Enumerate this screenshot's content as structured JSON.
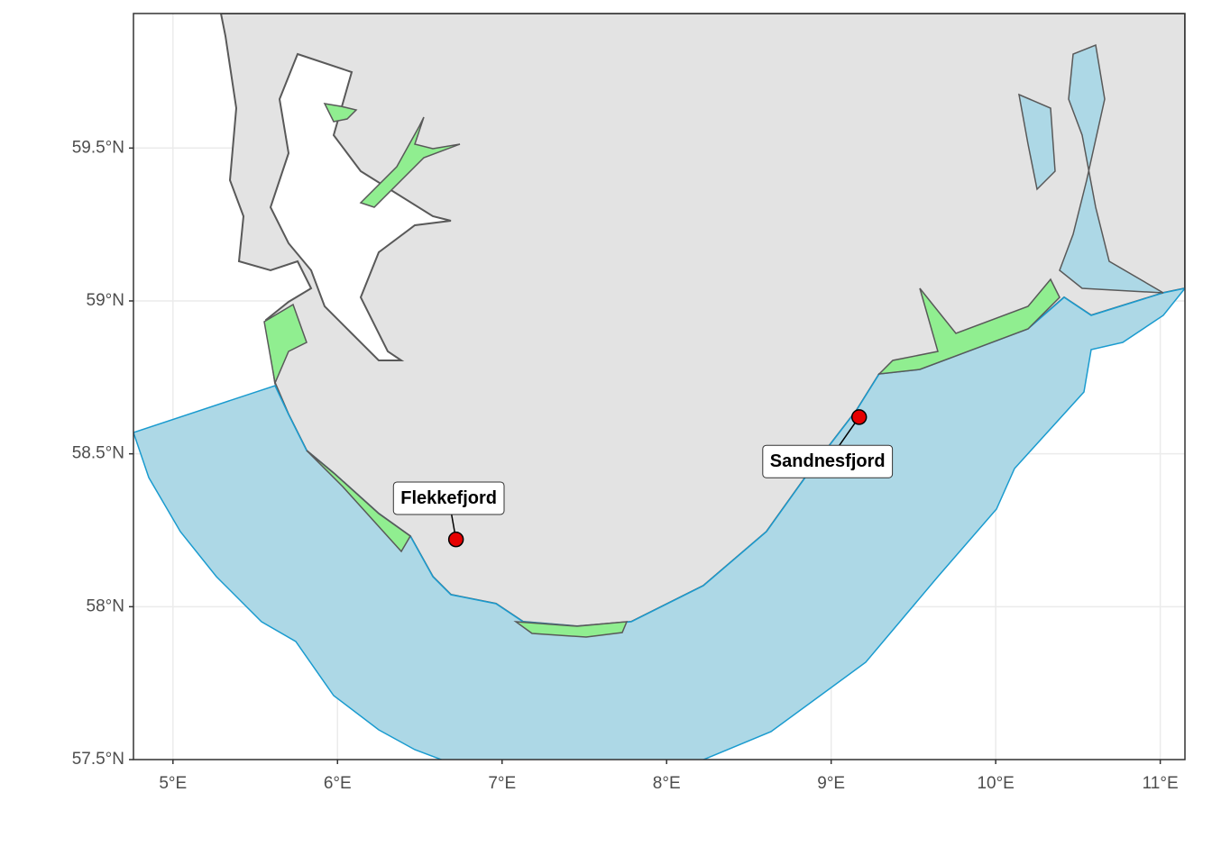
{
  "map": {
    "xlim": [
      4.76,
      11.15
    ],
    "ylim": [
      57.5,
      59.94
    ],
    "xticks": [
      {
        "value": 5,
        "label": "5°E"
      },
      {
        "value": 6,
        "label": "6°E"
      },
      {
        "value": 7,
        "label": "7°E"
      },
      {
        "value": 8,
        "label": "8°E"
      },
      {
        "value": 9,
        "label": "9°E"
      },
      {
        "value": 10,
        "label": "10°E"
      },
      {
        "value": 11,
        "label": "11°E"
      }
    ],
    "yticks": [
      {
        "value": 57.5,
        "label": "57.5°N"
      },
      {
        "value": 58,
        "label": "58°N"
      },
      {
        "value": 58.5,
        "label": "58.5°N"
      },
      {
        "value": 59,
        "label": "59°N"
      },
      {
        "value": 59.5,
        "label": "59.5°N"
      }
    ],
    "places": [
      {
        "name": "Flekkefjord",
        "lon": 6.72,
        "lat": 58.22,
        "color": "#e60000"
      },
      {
        "name": "Sandnesfjord",
        "lon": 9.17,
        "lat": 58.62,
        "color": "#e60000"
      }
    ]
  }
}
